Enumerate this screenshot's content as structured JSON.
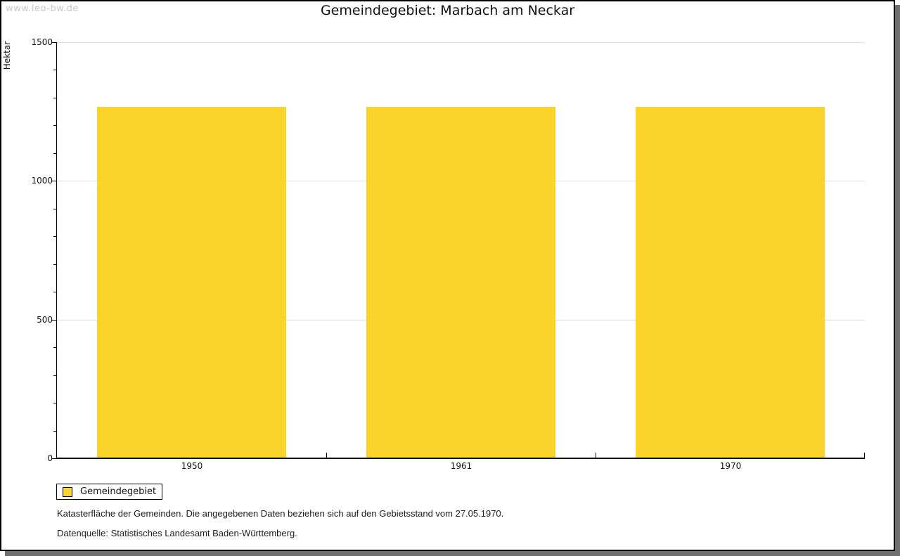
{
  "page": {
    "watermark": "www.leo-bw.de"
  },
  "chart_data": {
    "type": "bar",
    "title": "Gemeindegebiet: Marbach am Neckar",
    "categories": [
      "1950",
      "1961",
      "1970"
    ],
    "series": [
      {
        "name": "Gemeindegebiet",
        "values": [
          1267,
          1267,
          1267
        ]
      }
    ],
    "xlabel": "",
    "ylabel": "Hektar",
    "ylim": [
      0,
      1500
    ],
    "ytick_major": 500,
    "ytick_minor": 100,
    "grid": true,
    "legend_position": "bottom-left",
    "bar_color": "#fbd32b",
    "gridline_color": "#e0e0e0"
  },
  "legend": {
    "items": [
      {
        "label": "Gemeindegebiet",
        "color": "#fbd32b"
      }
    ]
  },
  "footnotes": [
    "Katasterfläche der Gemeinden. Die angegebenen Daten beziehen sich auf den Gebietsstand vom 27.05.1970.",
    "Datenquelle: Statistisches Landesamt Baden-Württemberg."
  ]
}
